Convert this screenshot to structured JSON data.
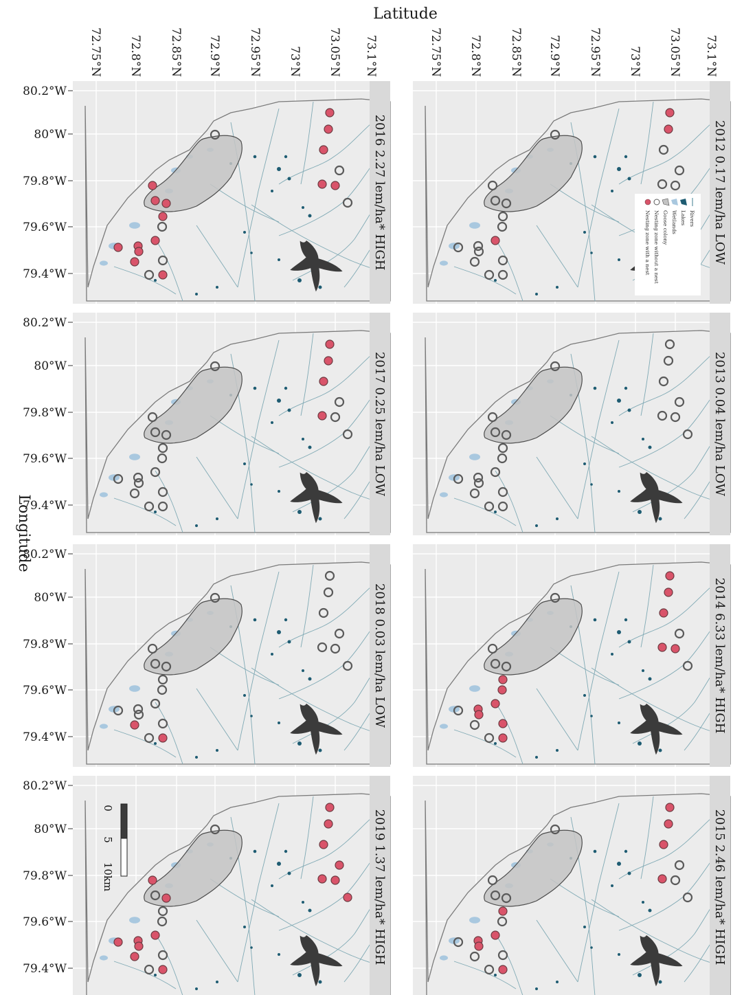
{
  "x_axis_title": "Latitude",
  "y_axis_title": "Longitude",
  "latitude_ticks": [
    "72.75°N",
    "72.8°N",
    "72.85°N",
    "72.9°N",
    "72.95°N",
    "73°N",
    "73.05°N",
    "73.1°N"
  ],
  "longitude_ticks": [
    "80.2°W",
    "80°W",
    "79.8°W",
    "79.6°W",
    "79.4°W"
  ],
  "panels": [
    {
      "strip": "2012 0.17 lem/ha LOW",
      "year": 2012,
      "density": 0.17,
      "level": "LOW",
      "occupied": [
        0,
        1,
        6,
        13
      ]
    },
    {
      "strip": "2013 0.04 lem/ha LOW",
      "year": 2013,
      "density": 0.04,
      "level": "LOW",
      "occupied": []
    },
    {
      "strip": "2014 6.33 lem/ha* HIGH",
      "year": 2014,
      "density": 6.33,
      "level": "HIGH",
      "occupied": [
        0,
        1,
        2,
        4,
        5,
        11,
        12,
        13,
        14,
        16,
        18,
        20
      ]
    },
    {
      "strip": "2015 2.46 lem/ha* HIGH",
      "year": 2015,
      "density": 2.46,
      "level": "HIGH",
      "occupied": [
        0,
        1,
        2,
        5,
        11,
        13,
        14,
        16,
        20
      ]
    },
    {
      "strip": "2016 2.27 lem/ha* HIGH",
      "year": 2016,
      "density": 2.27,
      "level": "HIGH",
      "occupied": [
        0,
        1,
        2,
        4,
        5,
        8,
        9,
        10,
        11,
        13,
        14,
        15,
        16,
        17,
        20
      ]
    },
    {
      "strip": "2017 0.25 lem/ha LOW",
      "year": 2017,
      "density": 0.25,
      "level": "LOW",
      "occupied": [
        0,
        1,
        2,
        5
      ]
    },
    {
      "strip": "2018 0.03 lem/ha LOW",
      "year": 2018,
      "density": 0.03,
      "level": "LOW",
      "occupied": [
        17,
        20
      ]
    },
    {
      "strip": "2019 1.37 lem/ha* HIGH",
      "year": 2019,
      "density": 1.37,
      "level": "HIGH",
      "occupied": [
        0,
        1,
        2,
        3,
        4,
        5,
        6,
        8,
        10,
        13,
        14,
        15,
        16,
        17,
        20
      ]
    }
  ],
  "legend": {
    "items": [
      "Rivers",
      "Lakes",
      "Wetlands",
      "Goose colony",
      "Nesting zone without a nest",
      "Nesting zone with a nest"
    ],
    "colors": {
      "rivers": "#7fa9b4",
      "lakes": "#1e5c72",
      "wetlands": "#a9c8df",
      "colony": "#c4c4c4",
      "nest_with": "#d9546a",
      "nest_without": "#5a5a5a"
    }
  },
  "scale_bar": {
    "labels": [
      "0",
      "5",
      "10km"
    ]
  },
  "icons": [
    "raptor-silhouette-icon"
  ]
}
